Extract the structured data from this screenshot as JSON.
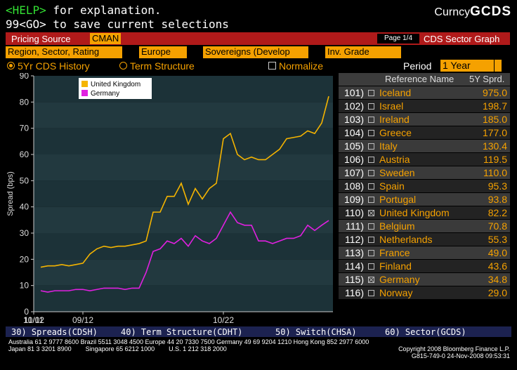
{
  "header": {
    "help_key": "<HELP>",
    "help_text": " for explanation.",
    "save_line": "99<GO> to save current selections",
    "mnemonic_prefix": "Curncy",
    "mnemonic": "GCDS"
  },
  "bar": {
    "pricing_label": "Pricing Source",
    "pricing_value": "CMAN",
    "page": "Page 1/4",
    "title": "CDS Sector Graph"
  },
  "filters": {
    "group": "Region, Sector, Rating",
    "region": "Europe",
    "sector": "Sovereigns (Develop",
    "rating": "Inv. Grade"
  },
  "modes": {
    "history": "5Yr CDS History",
    "term": "Term Structure",
    "normalize": "Normalize",
    "period_label": "Period",
    "period_value": "1 Year"
  },
  "colors": {
    "uk": "#f5b400",
    "germany": "#e020e0",
    "amber": "#f5a100",
    "red_bar": "#b01a1a"
  },
  "chart_data": {
    "type": "line",
    "ylabel": "Spread (bps)",
    "ylim": [
      0,
      90
    ],
    "yticks": [
      0,
      10,
      20,
      30,
      40,
      50,
      60,
      70,
      80,
      90
    ],
    "xticks": [
      "09/12",
      "10/02",
      "10/22",
      "11/11"
    ],
    "x_dates": [
      "08/29",
      "09/01",
      "09/03",
      "09/05",
      "09/08",
      "09/10",
      "09/12",
      "09/15",
      "09/17",
      "09/19",
      "09/22",
      "09/24",
      "09/26",
      "09/29",
      "09/30",
      "10/01",
      "10/03",
      "10/06",
      "10/08",
      "10/10",
      "10/13",
      "10/15",
      "10/16",
      "10/17",
      "10/20",
      "10/21",
      "10/22",
      "10/24",
      "10/27",
      "10/28",
      "10/31",
      "11/03",
      "11/05",
      "11/07",
      "11/10",
      "11/12",
      "11/14",
      "11/17",
      "11/19",
      "11/20",
      "11/21",
      "11/24"
    ],
    "series": [
      {
        "name": "United Kingdom",
        "values": [
          17,
          17.5,
          17.5,
          18,
          17.5,
          18,
          18.5,
          22,
          24,
          25,
          24.5,
          25,
          25,
          25.5,
          26,
          27,
          38,
          38,
          44,
          44,
          49,
          41,
          47,
          43,
          47,
          49,
          66,
          68,
          60,
          58,
          59,
          58,
          58,
          60,
          62,
          66,
          66.5,
          67,
          69,
          68,
          72,
          82.2
        ]
      },
      {
        "name": "Germany",
        "values": [
          8,
          7.5,
          8,
          8,
          8,
          8.5,
          8.5,
          8,
          8.5,
          9,
          9,
          9,
          8.5,
          9,
          9,
          15,
          23,
          24,
          27,
          26,
          28,
          25,
          29,
          27,
          26,
          28,
          33,
          38,
          34,
          33,
          33,
          27,
          27,
          26,
          27,
          28,
          28,
          29,
          33,
          31,
          33,
          34.8
        ]
      }
    ],
    "legend": [
      "United Kingdom",
      "Germany"
    ]
  },
  "table": {
    "headers": {
      "name": "Reference Name",
      "spread": "5Y Sprd."
    },
    "rows": [
      {
        "num": "101)",
        "name": "Iceland",
        "value": "975.0",
        "checked": false
      },
      {
        "num": "102)",
        "name": "Israel",
        "value": "198.7",
        "checked": false
      },
      {
        "num": "103)",
        "name": "Ireland",
        "value": "185.0",
        "checked": false
      },
      {
        "num": "104)",
        "name": "Greece",
        "value": "177.0",
        "checked": false
      },
      {
        "num": "105)",
        "name": "Italy",
        "value": "130.4",
        "checked": false
      },
      {
        "num": "106)",
        "name": "Austria",
        "value": "119.5",
        "checked": false
      },
      {
        "num": "107)",
        "name": "Sweden",
        "value": "110.0",
        "checked": false
      },
      {
        "num": "108)",
        "name": "Spain",
        "value": "95.3",
        "checked": false
      },
      {
        "num": "109)",
        "name": "Portugal",
        "value": "93.8",
        "checked": false
      },
      {
        "num": "110)",
        "name": "United Kingdom",
        "value": "82.2",
        "checked": true
      },
      {
        "num": "111)",
        "name": "Belgium",
        "value": "70.8",
        "checked": false
      },
      {
        "num": "112)",
        "name": "Netherlands",
        "value": "55.3",
        "checked": false
      },
      {
        "num": "113)",
        "name": "France",
        "value": "49.0",
        "checked": false
      },
      {
        "num": "114)",
        "name": "Finland",
        "value": "43.6",
        "checked": false
      },
      {
        "num": "115)",
        "name": "Germany",
        "value": "34.8",
        "checked": true
      },
      {
        "num": "116)",
        "name": "Norway",
        "value": "29.0",
        "checked": false
      }
    ]
  },
  "menu": [
    "30) Spreads(CDSH)",
    "40) Term Structure(CDHT)",
    "50) Switch(CHSA)",
    "60) Sector(GCDS)"
  ],
  "footer": {
    "line1": "Australia 61 2 9777 8600 Brazil 5511 3048 4500 Europe 44 20 7330 7500 Germany 49 69 9204 1210 Hong Kong 852 2977 6000",
    "line2": "Japan 81 3 3201 8900        Singapore 65 6212 1000        U.S. 1 212 318 2000",
    "copyright": "Copyright 2008 Bloomberg Finance L.P.",
    "stamp": "G815-749-0 24-Nov-2008 09:53:31"
  }
}
